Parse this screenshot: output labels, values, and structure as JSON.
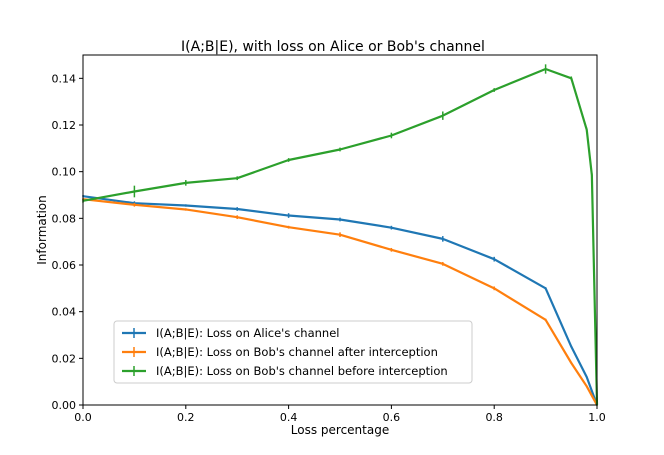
{
  "chart_data": {
    "type": "line",
    "title": "I(A;B|E), with loss on Alice or Bob's channel",
    "xlabel": "Loss percentage",
    "ylabel": "Information",
    "xlim": [
      0.0,
      1.0
    ],
    "ylim": [
      0.0,
      0.15
    ],
    "xticks": [
      0.0,
      0.2,
      0.4,
      0.6,
      0.8,
      1.0
    ],
    "yticks": [
      0.0,
      0.02,
      0.04,
      0.06,
      0.08,
      0.1,
      0.12,
      0.14
    ],
    "xtick_labels": [
      "0.0",
      "0.2",
      "0.4",
      "0.6",
      "0.8",
      "1.0"
    ],
    "ytick_labels": [
      "0.00",
      "0.02",
      "0.04",
      "0.06",
      "0.08",
      "0.10",
      "0.12",
      "0.14"
    ],
    "grid": false,
    "legend_position": "lower-left",
    "series": [
      {
        "name": "I(A;B|E): Loss on Alice's channel",
        "color": "#1f77b4",
        "x": [
          0.0,
          0.1,
          0.2,
          0.3,
          0.4,
          0.5,
          0.6,
          0.7,
          0.8,
          0.9,
          0.95,
          0.98,
          0.99,
          1.0
        ],
        "y": [
          0.0895,
          0.0865,
          0.0855,
          0.084,
          0.0812,
          0.0795,
          0.076,
          0.0712,
          0.0625,
          0.05,
          0.025,
          0.012,
          0.006,
          0.0
        ],
        "err": [
          0.0005,
          0.0008,
          0.0005,
          0.0008,
          0.001,
          0.0008,
          0.0008,
          0.0012,
          0.001,
          0.0005,
          0.0004,
          0.0003,
          0.0003,
          0.0003
        ]
      },
      {
        "name": "I(A;B|E): Loss on Bob's channel after interception",
        "color": "#ff7f0e",
        "x": [
          0.0,
          0.1,
          0.2,
          0.3,
          0.4,
          0.5,
          0.6,
          0.7,
          0.8,
          0.9,
          0.95,
          0.98,
          0.99,
          1.0
        ],
        "y": [
          0.0882,
          0.0858,
          0.0838,
          0.0805,
          0.0762,
          0.073,
          0.0665,
          0.0605,
          0.05,
          0.0365,
          0.018,
          0.008,
          0.004,
          0.0
        ],
        "err": [
          0.0005,
          0.0008,
          0.0005,
          0.0008,
          0.0006,
          0.001,
          0.0008,
          0.0008,
          0.0008,
          0.0005,
          0.0004,
          0.0003,
          0.0003,
          0.0003
        ]
      },
      {
        "name": "I(A;B|E): Loss on Bob's channel before interception",
        "color": "#2ca02c",
        "x": [
          0.0,
          0.1,
          0.2,
          0.3,
          0.4,
          0.5,
          0.6,
          0.7,
          0.8,
          0.9,
          0.95,
          0.98,
          0.99,
          1.0
        ],
        "y": [
          0.0875,
          0.0915,
          0.0952,
          0.0972,
          0.105,
          0.1095,
          0.1155,
          0.124,
          0.135,
          0.144,
          0.14,
          0.118,
          0.0985,
          0.0
        ],
        "err": [
          0.0008,
          0.0025,
          0.0012,
          0.0008,
          0.0008,
          0.0008,
          0.0012,
          0.0018,
          0.0008,
          0.002,
          0.0008,
          0.0008,
          0.0008,
          0.0003
        ]
      }
    ]
  }
}
